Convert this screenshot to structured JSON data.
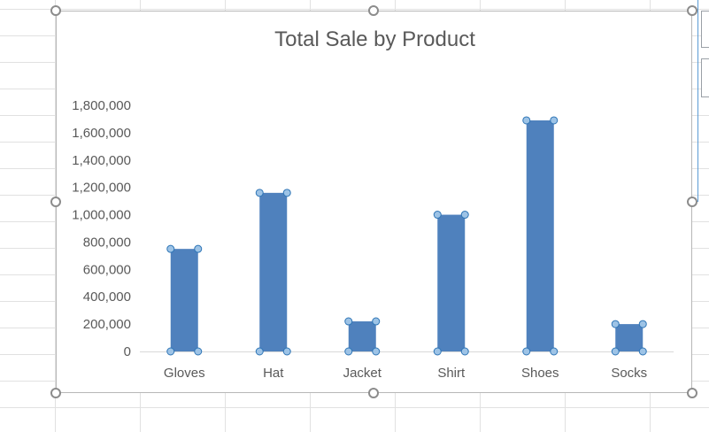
{
  "chart_data": {
    "type": "bar",
    "title": "Total Sale by Product",
    "categories": [
      "Gloves",
      "Hat",
      "Jacket",
      "Shirt",
      "Shoes",
      "Socks"
    ],
    "values": [
      750000,
      1160000,
      220000,
      1000000,
      1690000,
      200000
    ],
    "yticks": [
      "0",
      "200,000",
      "400,000",
      "600,000",
      "800,000",
      "1,000,000",
      "1,200,000",
      "1,400,000",
      "1,600,000",
      "1,800,000"
    ],
    "ylim": [
      0,
      1800000
    ],
    "xlabel": "",
    "ylabel": "",
    "grid": false,
    "legend": "none",
    "bar_color": "#4f81bd",
    "selection_point_color": "#9dc3e6"
  }
}
